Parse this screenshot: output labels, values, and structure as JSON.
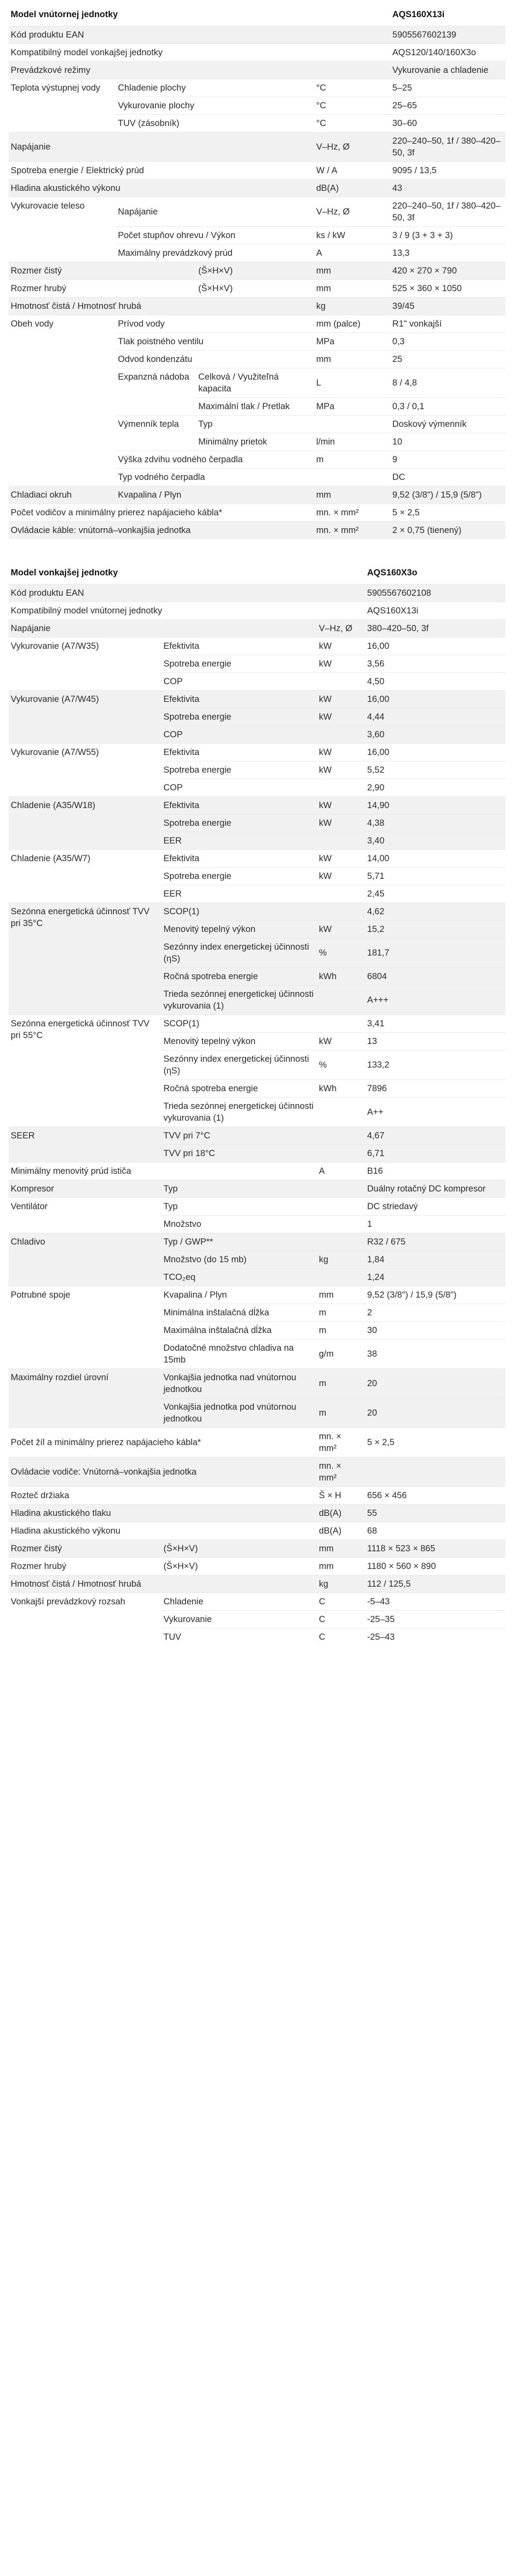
{
  "indoor": {
    "title": "Model vnútornej jednotky",
    "model": "AQS160X13i",
    "rows": [
      [
        "Kód produktu EAN",
        "5905567602139"
      ],
      [
        "Kompatibilný model vonkajšej jednotky",
        "AQS120/140/160X3o"
      ],
      [
        "Prevádzkové režimy",
        "Vykurovanie a chladenie"
      ],
      [
        "Teplota výstupnej vody",
        "Chladenie plochy",
        "°C",
        "5–25"
      ],
      [
        "Vykurovanie plochy",
        "°C",
        "25–65"
      ],
      [
        "TUV (zásobník)",
        "°C",
        "30–60"
      ],
      [
        "Napájanie",
        "V–Hz, Ø",
        "220–240–50, 1f / 380–420–50, 3f"
      ],
      [
        "Spotreba energie / Elektrický prúd",
        "W / A",
        "9095 / 13,5"
      ],
      [
        "Hladina akustického výkonu",
        "dB(A)",
        "43"
      ],
      [
        "Vykurovacie teleso",
        "Napájanie",
        "V–Hz, Ø",
        "220–240–50, 1f / 380–420–50, 3f"
      ],
      [
        "Počet stupňov ohrevu / Výkon",
        "ks / kW",
        "3 / 9 (3 + 3 + 3)"
      ],
      [
        "Maximálny prevádzkový prúd",
        "A",
        "13,3"
      ],
      [
        "Rozmer čistý",
        "(Š×H×V)",
        "mm",
        "420 × 270 × 790"
      ],
      [
        "Rozmer hrubý",
        "(Š×H×V)",
        "mm",
        "525 × 360 × 1050"
      ],
      [
        "Hmotnosť čistá / Hmotnosť hrubá",
        "kg",
        "39/45"
      ],
      [
        "Obeh vody",
        "Prívod vody",
        "mm (palce)",
        "R1\" vonkajší"
      ],
      [
        "Tlak poistného ventilu",
        "MPa",
        "0,3"
      ],
      [
        "Odvod kondenzátu",
        "mm",
        "25"
      ],
      [
        "Expanzná nádoba",
        "Celková / Využiteľná kapacita",
        "L",
        "8 / 4,8"
      ],
      [
        "Maximální tlak / Pretlak",
        "MPa",
        "0,3 / 0,1"
      ],
      [
        "Výmenník tepla",
        "Typ",
        "Doskový výmenník"
      ],
      [
        "Minimálny prietok",
        "l/min",
        "10"
      ],
      [
        "Výška zdvihu vodného čerpadla",
        "m",
        "9"
      ],
      [
        "Typ vodného čerpadla",
        "DC"
      ],
      [
        "Chladiaci okruh",
        "Kvapalina / Plyn",
        "mm",
        "9,52 (3/8\") / 15,9 (5/8\")"
      ],
      [
        "Počet vodičov a minimálny prierez napájacieho kábla*",
        "mn. × mm²",
        "5 × 2,5"
      ],
      [
        "Ovládacie káble: vnútorná–vonkajšia jednotka",
        "mn. × mm²",
        "2 × 0,75 (tienený)"
      ]
    ]
  },
  "outdoor": {
    "title": "Model vonkajšej jednotky",
    "model": "AQS160X3o",
    "rows": [
      [
        "Kód produktu EAN",
        "5905567602108"
      ],
      [
        "Kompatibilný model vnútornej jednotky",
        "AQS160X13i"
      ],
      [
        "Napájanie",
        "V–Hz, Ø",
        "380–420–50, 3f"
      ],
      [
        "Vykurovanie (A7/W35)",
        "Efektivita",
        "kW",
        "16,00"
      ],
      [
        "Spotreba energie",
        "kW",
        "3,56"
      ],
      [
        "COP",
        "4,50"
      ],
      [
        "Vykurovanie (A7/W45)",
        "Efektivita",
        "kW",
        "16,00"
      ],
      [
        "Spotreba energie",
        "kW",
        "4,44"
      ],
      [
        "COP",
        "3,60"
      ],
      [
        "Vykurovanie (A7/W55)",
        "Efektivita",
        "kW",
        "16,00"
      ],
      [
        "Spotreba energie",
        "kW",
        "5,52"
      ],
      [
        "COP",
        "2,90"
      ],
      [
        "Chladenie (A35/W18)",
        "Efektivita",
        "kW",
        "14,90"
      ],
      [
        "Spotreba energie",
        "kW",
        "4,38"
      ],
      [
        "EER",
        "3,40"
      ],
      [
        "Chladenie (A35/W7)",
        "Efektivita",
        "kW",
        "14,00"
      ],
      [
        "Spotreba energie",
        "kW",
        "5,71"
      ],
      [
        "EER",
        "2,45"
      ],
      [
        "Sezónna energetická účinnosť TVV pri 35°C",
        "SCOP(1)",
        "4,62"
      ],
      [
        "Menovitý tepelný výkon",
        "kW",
        "15,2"
      ],
      [
        "Sezónny index energetickej účinnosti (ηS)",
        "%",
        "181,7"
      ],
      [
        "Ročná spotreba energie",
        "kWh",
        "6804"
      ],
      [
        "Trieda sezónnej energetickej účinnosti vykurovania (1)",
        "A+++"
      ],
      [
        "Sezónna energetická účinnosť TVV pri 55°C",
        "SCOP(1)",
        "3,41"
      ],
      [
        "Menovitý tepelný výkon",
        "kW",
        "13"
      ],
      [
        "Sezónny index energetickej účinnosti (ηS)",
        "%",
        "133,2"
      ],
      [
        "Ročná spotreba energie",
        "kWh",
        "7896"
      ],
      [
        "Trieda sezónnej energetickej účinnosti vykurovania (1)",
        "A++"
      ],
      [
        "SEER",
        "TVV pri 7°C",
        "4,67"
      ],
      [
        "TVV pri 18°C",
        "6,71"
      ],
      [
        "Minimálny menovitý prúd ističa",
        "A",
        "B16"
      ],
      [
        "Kompresor",
        "Typ",
        "Duálny rotačný DC kompresor"
      ],
      [
        "Ventilátor",
        "Typ",
        "DC striedavý"
      ],
      [
        "Množstvo",
        "1"
      ],
      [
        "Chladivo",
        "Typ / GWP**",
        "R32 / 675"
      ],
      [
        "Množstvo (do 15 mb)",
        "kg",
        "1,84"
      ],
      [
        "TCO₂eq",
        "1,24"
      ],
      [
        "Potrubné spoje",
        "Kvapalina / Plyn",
        "mm",
        "9,52 (3/8\") / 15,9 (5/8\")"
      ],
      [
        "Minimálna inštalačná dĺžka",
        "m",
        "2"
      ],
      [
        "Maximálna inštalačná dĺžka",
        "m",
        "30"
      ],
      [
        "Dodatočné množstvo chladiva na 15mb",
        "g/m",
        "38"
      ],
      [
        "Maximálny rozdiel úrovní",
        "Vonkajšia jednotka nad vnútornou jednotkou",
        "m",
        "20"
      ],
      [
        "Vonkajšia jednotka pod vnútornou jednotkou",
        "m",
        "20"
      ],
      [
        "Počet žíl a minimálny prierez napájacieho kábla*",
        "mn. × mm²",
        "5 × 2,5"
      ],
      [
        "Ovládacie vodiče: Vnútorná–vonkajšia jednotka",
        "mn. × mm²",
        ""
      ],
      [
        "Rozteč držiaka",
        "Š × H",
        "656 × 456"
      ],
      [
        "Hladina akustického tlaku",
        "dB(A)",
        "55"
      ],
      [
        "Hladina akustického výkonu",
        "dB(A)",
        "68"
      ],
      [
        "Rozmer čistý",
        "(Š×H×V)",
        "mm",
        "1118 × 523 × 865"
      ],
      [
        "Rozmer hrubý",
        "(Š×H×V)",
        "mm",
        "1180 × 560 × 890"
      ],
      [
        "Hmotnosť čistá / Hmotnosť hrubá",
        "kg",
        "112 / 125,5"
      ],
      [
        "Vonkajší prevádzkový rozsah",
        "Chladenie",
        "C",
        "-5–43"
      ],
      [
        "Vykurovanie",
        "C",
        "-25–35"
      ],
      [
        "TUV",
        "C",
        "-25–43"
      ]
    ]
  }
}
